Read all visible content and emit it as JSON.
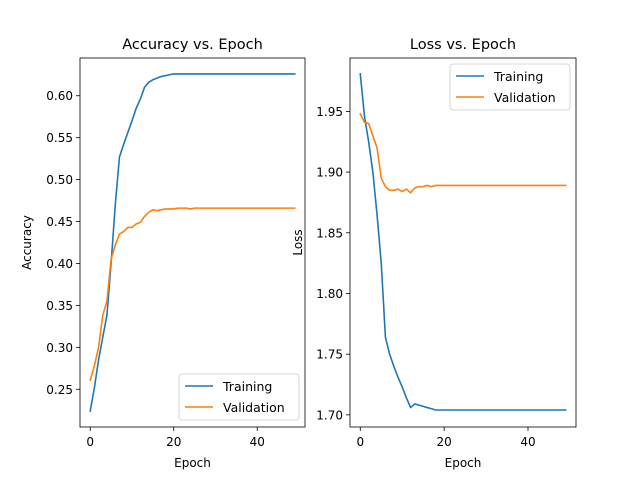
{
  "chart_data": [
    {
      "type": "line",
      "title": "Accuracy vs. Epoch",
      "xlabel": "Epoch",
      "ylabel": "Accuracy",
      "xlim": [
        -2.45,
        51.45
      ],
      "ylim": [
        0.205,
        0.645
      ],
      "xticks": [
        0,
        20,
        40
      ],
      "yticks": [
        0.25,
        0.3,
        0.35,
        0.4,
        0.45,
        0.5,
        0.55,
        0.6
      ],
      "ytick_labels": [
        "0.25",
        "0.30",
        "0.35",
        "0.40",
        "0.45",
        "0.50",
        "0.55",
        "0.60"
      ],
      "legend_position": "lower-right",
      "x": [
        0,
        1,
        2,
        3,
        4,
        5,
        6,
        7,
        8,
        9,
        10,
        11,
        12,
        13,
        14,
        15,
        16,
        17,
        18,
        19,
        20,
        21,
        22,
        23,
        24,
        25,
        26,
        27,
        28,
        29,
        30,
        31,
        32,
        33,
        34,
        35,
        36,
        37,
        38,
        39,
        40,
        41,
        42,
        43,
        44,
        45,
        46,
        47,
        48,
        49
      ],
      "series": [
        {
          "name": "Training",
          "color": "#1f77b4",
          "values": [
            0.224,
            0.252,
            0.285,
            0.312,
            0.338,
            0.4,
            0.47,
            0.527,
            0.542,
            0.556,
            0.57,
            0.585,
            0.596,
            0.61,
            0.616,
            0.619,
            0.621,
            0.623,
            0.624,
            0.625,
            0.626,
            0.626,
            0.626,
            0.626,
            0.626,
            0.626,
            0.626,
            0.626,
            0.626,
            0.626,
            0.626,
            0.626,
            0.626,
            0.626,
            0.626,
            0.626,
            0.626,
            0.626,
            0.626,
            0.626,
            0.626,
            0.626,
            0.626,
            0.626,
            0.626,
            0.626,
            0.626,
            0.626,
            0.626,
            0.626
          ]
        },
        {
          "name": "Validation",
          "color": "#ff7f0e",
          "values": [
            0.261,
            0.278,
            0.3,
            0.338,
            0.355,
            0.405,
            0.422,
            0.435,
            0.438,
            0.443,
            0.443,
            0.447,
            0.449,
            0.456,
            0.461,
            0.464,
            0.463,
            0.464,
            0.465,
            0.465,
            0.465,
            0.466,
            0.466,
            0.466,
            0.465,
            0.466,
            0.466,
            0.466,
            0.466,
            0.466,
            0.466,
            0.466,
            0.466,
            0.466,
            0.466,
            0.466,
            0.466,
            0.466,
            0.466,
            0.466,
            0.466,
            0.466,
            0.466,
            0.466,
            0.466,
            0.466,
            0.466,
            0.466,
            0.466,
            0.466
          ]
        }
      ]
    },
    {
      "type": "line",
      "title": "Loss vs. Epoch",
      "xlabel": "Epoch",
      "ylabel": "Loss",
      "xlim": [
        -2.45,
        51.45
      ],
      "ylim": [
        1.69,
        1.994
      ],
      "xticks": [
        0,
        20,
        40
      ],
      "yticks": [
        1.7,
        1.75,
        1.8,
        1.85,
        1.9,
        1.95
      ],
      "ytick_labels": [
        "1.70",
        "1.75",
        "1.80",
        "1.85",
        "1.90",
        "1.95"
      ],
      "legend_position": "upper-right",
      "x": [
        0,
        1,
        2,
        3,
        4,
        5,
        6,
        7,
        8,
        9,
        10,
        11,
        12,
        13,
        14,
        15,
        16,
        17,
        18,
        19,
        20,
        21,
        22,
        23,
        24,
        25,
        26,
        27,
        28,
        29,
        30,
        31,
        32,
        33,
        34,
        35,
        36,
        37,
        38,
        39,
        40,
        41,
        42,
        43,
        44,
        45,
        46,
        47,
        48,
        49
      ],
      "series": [
        {
          "name": "Training",
          "color": "#1f77b4",
          "values": [
            1.981,
            1.946,
            1.925,
            1.9,
            1.865,
            1.825,
            1.764,
            1.75,
            1.74,
            1.731,
            1.723,
            1.714,
            1.706,
            1.709,
            1.708,
            1.707,
            1.706,
            1.705,
            1.704,
            1.704,
            1.704,
            1.704,
            1.704,
            1.704,
            1.704,
            1.704,
            1.704,
            1.704,
            1.704,
            1.704,
            1.704,
            1.704,
            1.704,
            1.704,
            1.704,
            1.704,
            1.704,
            1.704,
            1.704,
            1.704,
            1.704,
            1.704,
            1.704,
            1.704,
            1.704,
            1.704,
            1.704,
            1.704,
            1.704,
            1.704
          ]
        },
        {
          "name": "Validation",
          "color": "#ff7f0e",
          "values": [
            1.948,
            1.941,
            1.94,
            1.93,
            1.92,
            1.895,
            1.888,
            1.885,
            1.885,
            1.886,
            1.884,
            1.886,
            1.883,
            1.887,
            1.888,
            1.888,
            1.889,
            1.888,
            1.889,
            1.889,
            1.889,
            1.889,
            1.889,
            1.889,
            1.889,
            1.889,
            1.889,
            1.889,
            1.889,
            1.889,
            1.889,
            1.889,
            1.889,
            1.889,
            1.889,
            1.889,
            1.889,
            1.889,
            1.889,
            1.889,
            1.889,
            1.889,
            1.889,
            1.889,
            1.889,
            1.889,
            1.889,
            1.889,
            1.889,
            1.889
          ]
        }
      ]
    }
  ]
}
